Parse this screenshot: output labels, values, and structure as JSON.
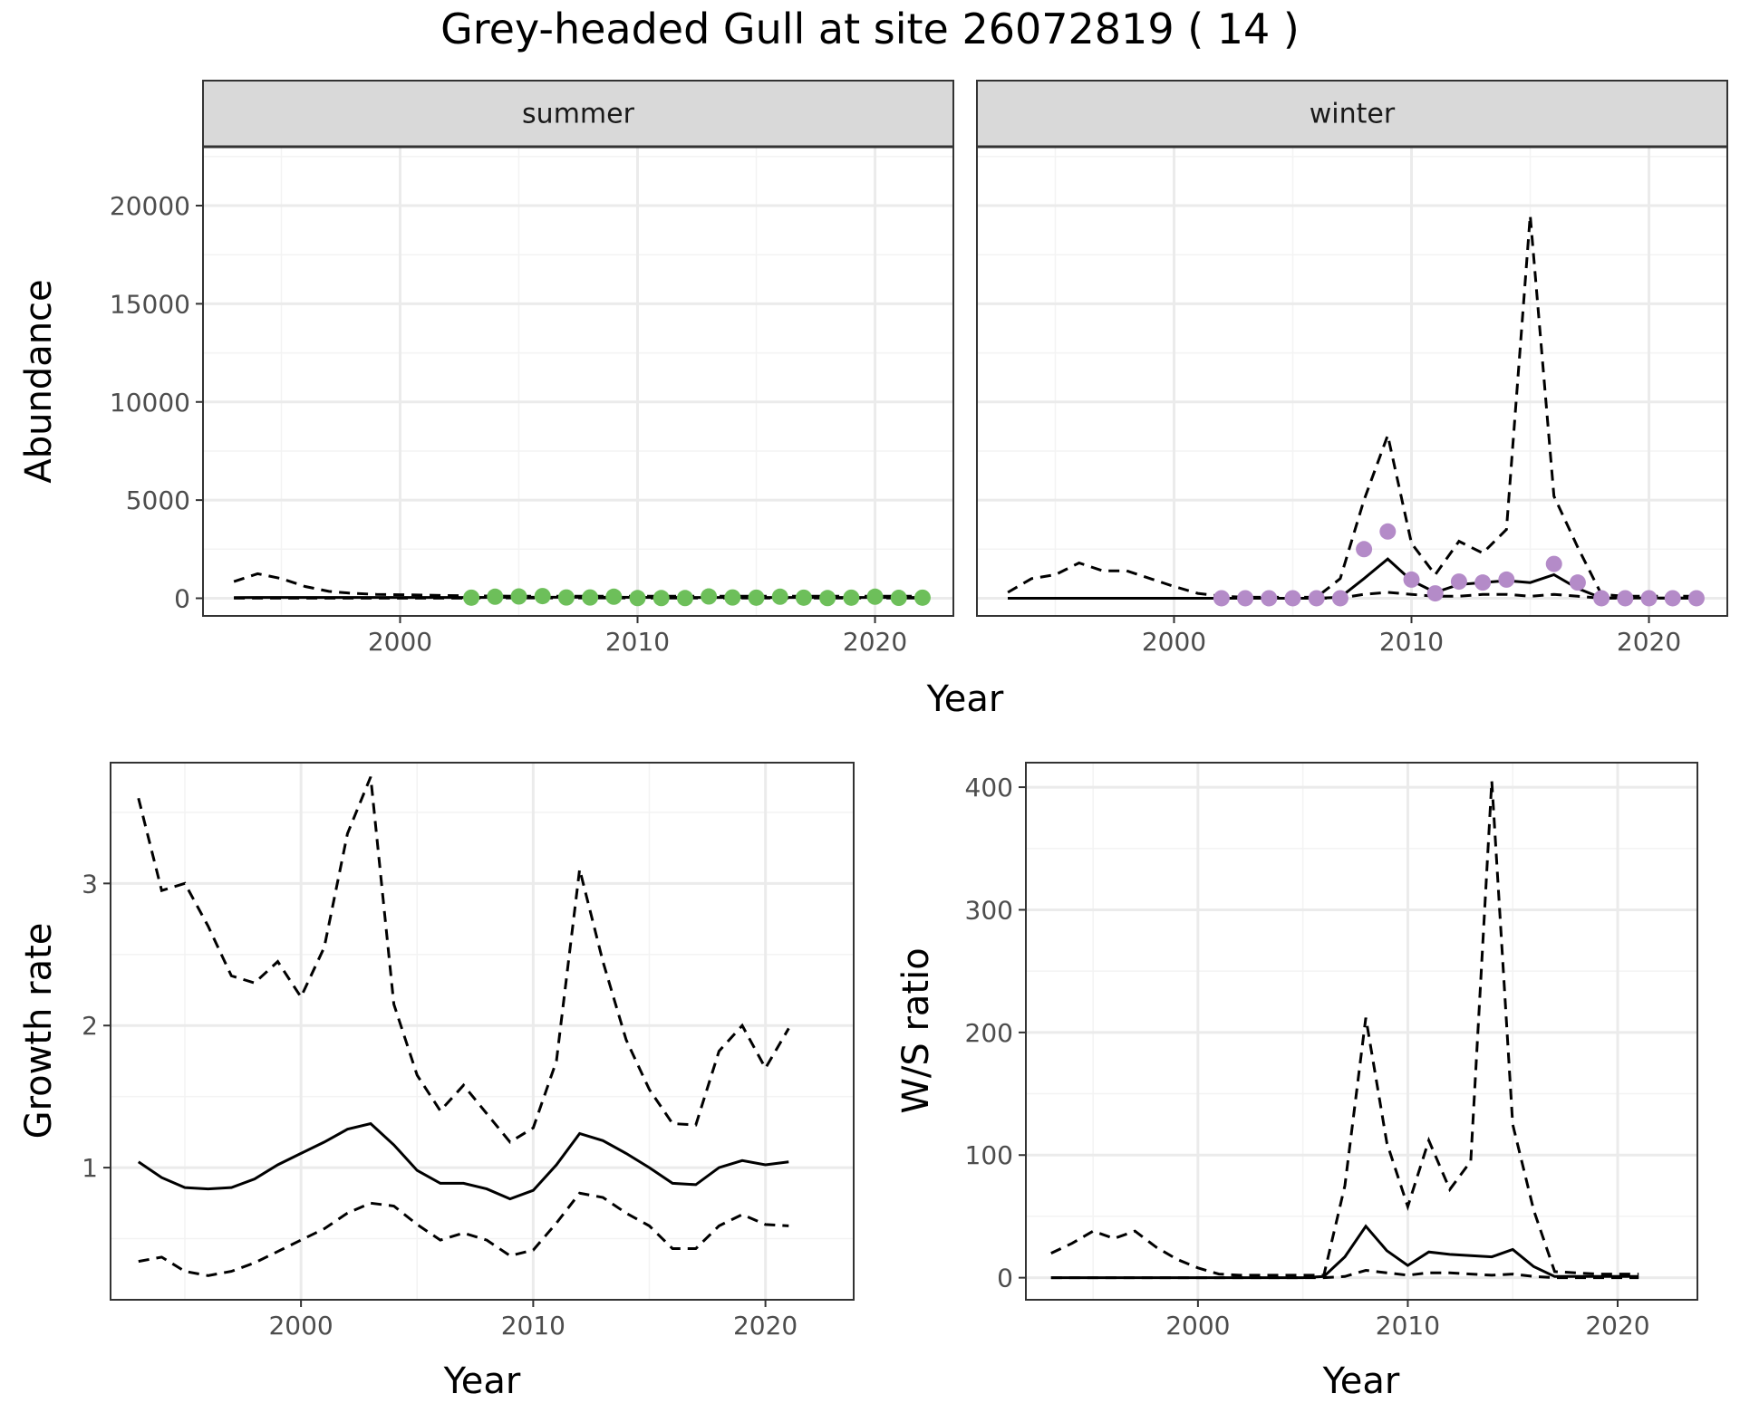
{
  "title": "Grey-headed Gull at site 26072819 ( 14 )",
  "colors": {
    "summer_points": "#6dbf5a",
    "winter_points": "#b48bc8",
    "line": "#000000",
    "grid_major": "#ebebeb",
    "grid_minor": "#f3f3f3",
    "strip_fill": "#d9d9d9",
    "strip_border": "#333333",
    "panel_border": "#333333"
  },
  "chart_data": [
    {
      "type": "line",
      "panel": "summer",
      "strip_label": "summer",
      "xlabel": "Year",
      "ylabel": "Abundance",
      "xlim": [
        1991.7,
        2023.3
      ],
      "ylim": [
        -900,
        23000
      ],
      "xticks": [
        2000,
        2010,
        2020
      ],
      "yticks": [
        0,
        5000,
        10000,
        15000,
        20000
      ],
      "grid": true,
      "x": [
        1993,
        1994,
        1995,
        1996,
        1997,
        1998,
        1999,
        2000,
        2001,
        2002,
        2003,
        2004,
        2005,
        2006,
        2007,
        2008,
        2009,
        2010,
        2011,
        2012,
        2013,
        2014,
        2015,
        2016,
        2017,
        2018,
        2019,
        2020,
        2021,
        2022
      ],
      "mean": [
        30,
        40,
        40,
        40,
        40,
        40,
        40,
        40,
        40,
        40,
        40,
        45,
        50,
        50,
        50,
        50,
        50,
        45,
        40,
        40,
        40,
        40,
        40,
        40,
        40,
        40,
        40,
        40,
        40,
        40
      ],
      "upper": [
        850,
        1250,
        1000,
        600,
        350,
        250,
        200,
        180,
        160,
        140,
        120,
        110,
        100,
        100,
        100,
        100,
        100,
        100,
        100,
        100,
        100,
        100,
        100,
        100,
        100,
        100,
        100,
        100,
        100,
        100
      ],
      "lower": [
        5,
        5,
        5,
        5,
        5,
        5,
        5,
        5,
        5,
        5,
        10,
        15,
        20,
        20,
        20,
        20,
        20,
        15,
        10,
        10,
        10,
        10,
        10,
        10,
        10,
        10,
        10,
        10,
        10,
        10
      ],
      "points": {
        "x": [
          2003,
          2004,
          2005,
          2006,
          2007,
          2008,
          2009,
          2010,
          2011,
          2012,
          2013,
          2014,
          2015,
          2016,
          2017,
          2018,
          2019,
          2020,
          2021,
          2022
        ],
        "y": [
          30,
          80,
          90,
          110,
          40,
          40,
          80,
          10,
          10,
          10,
          90,
          40,
          30,
          80,
          30,
          10,
          30,
          80,
          20,
          30
        ]
      }
    },
    {
      "type": "line",
      "panel": "winter",
      "strip_label": "winter",
      "xlabel": "Year",
      "ylabel": "",
      "xlim": [
        1991.7,
        2023.3
      ],
      "ylim": [
        -900,
        23000
      ],
      "xticks": [
        2000,
        2010,
        2020
      ],
      "yticks": [
        0,
        5000,
        10000,
        15000,
        20000
      ],
      "grid": true,
      "x": [
        1993,
        1994,
        1995,
        1996,
        1997,
        1998,
        1999,
        2000,
        2001,
        2002,
        2003,
        2004,
        2005,
        2006,
        2007,
        2008,
        2009,
        2010,
        2011,
        2012,
        2013,
        2014,
        2015,
        2016,
        2017,
        2018,
        2019,
        2020,
        2021,
        2022
      ],
      "mean": [
        0,
        0,
        0,
        0,
        0,
        0,
        0,
        0,
        0,
        0,
        0,
        0,
        0,
        0,
        50,
        1000,
        2000,
        900,
        300,
        700,
        800,
        900,
        800,
        1200,
        500,
        20,
        10,
        10,
        10,
        10
      ],
      "upper": [
        300,
        1000,
        1200,
        1800,
        1400,
        1400,
        1000,
        600,
        250,
        100,
        50,
        50,
        50,
        50,
        1000,
        5000,
        8300,
        2800,
        1200,
        2900,
        2300,
        3500,
        19500,
        5200,
        2600,
        200,
        100,
        100,
        100,
        100
      ],
      "lower": [
        0,
        0,
        0,
        0,
        0,
        0,
        0,
        0,
        0,
        0,
        0,
        0,
        0,
        0,
        10,
        200,
        300,
        200,
        100,
        100,
        200,
        200,
        100,
        200,
        100,
        5,
        5,
        5,
        5,
        5
      ],
      "points": {
        "x": [
          2002,
          2003,
          2004,
          2005,
          2006,
          2007,
          2008,
          2009,
          2010,
          2011,
          2012,
          2013,
          2014,
          2015,
          2016,
          2017,
          2018,
          2019,
          2020,
          2021,
          2022
        ],
        "y": [
          0,
          0,
          0,
          0,
          0,
          0,
          2500,
          3400,
          950,
          250,
          850,
          800,
          950,
          null,
          1750,
          800,
          0,
          0,
          0,
          0,
          0
        ]
      }
    },
    {
      "type": "line",
      "panel": "growth",
      "xlabel": "Year",
      "ylabel": "Growth rate",
      "xlim": [
        1991.8,
        2023.8
      ],
      "ylim": [
        0.07,
        3.85
      ],
      "xticks": [
        2000,
        2010,
        2020
      ],
      "yticks": [
        1,
        2,
        3
      ],
      "grid": true,
      "x": [
        1993,
        1994,
        1995,
        1996,
        1997,
        1998,
        1999,
        2000,
        2001,
        2002,
        2003,
        2004,
        2005,
        2006,
        2007,
        2008,
        2009,
        2010,
        2011,
        2012,
        2013,
        2014,
        2015,
        2016,
        2017,
        2018,
        2019,
        2020,
        2021
      ],
      "mean": [
        1.04,
        0.93,
        0.86,
        0.85,
        0.86,
        0.92,
        1.02,
        1.1,
        1.18,
        1.27,
        1.31,
        1.16,
        0.98,
        0.89,
        0.89,
        0.85,
        0.78,
        0.84,
        1.02,
        1.24,
        1.19,
        1.1,
        1.0,
        0.89,
        0.88,
        1.0,
        1.05,
        1.02,
        1.04
      ],
      "upper": [
        3.6,
        2.95,
        3.0,
        2.7,
        2.35,
        2.3,
        2.45,
        2.2,
        2.55,
        3.35,
        3.75,
        2.15,
        1.65,
        1.4,
        1.58,
        1.38,
        1.18,
        1.28,
        1.75,
        3.1,
        2.45,
        1.9,
        1.55,
        1.31,
        1.3,
        1.82,
        2.0,
        1.7,
        1.98
      ],
      "lower": [
        0.34,
        0.37,
        0.27,
        0.24,
        0.27,
        0.33,
        0.41,
        0.49,
        0.57,
        0.68,
        0.75,
        0.73,
        0.6,
        0.49,
        0.54,
        0.49,
        0.38,
        0.42,
        0.61,
        0.82,
        0.79,
        0.68,
        0.59,
        0.43,
        0.43,
        0.59,
        0.67,
        0.6,
        0.59
      ]
    },
    {
      "type": "line",
      "panel": "ws_ratio",
      "xlabel": "Year",
      "ylabel": "W/S ratio",
      "xlim": [
        1991.8,
        2023.8
      ],
      "ylim": [
        -18,
        420
      ],
      "xticks": [
        2000,
        2010,
        2020
      ],
      "yticks": [
        0,
        100,
        200,
        300,
        400
      ],
      "grid": true,
      "x": [
        1993,
        1994,
        1995,
        1996,
        1997,
        1998,
        1999,
        2000,
        2001,
        2002,
        2003,
        2004,
        2005,
        2006,
        2007,
        2008,
        2009,
        2010,
        2011,
        2012,
        2013,
        2014,
        2015,
        2016,
        2017,
        2018,
        2019,
        2020,
        2021
      ],
      "mean": [
        0,
        0,
        0,
        0,
        0,
        0,
        0,
        0,
        0,
        0,
        0,
        0,
        0,
        1,
        17,
        42,
        22,
        10,
        21,
        19,
        18,
        17,
        23,
        9,
        1,
        1,
        1,
        1,
        1
      ],
      "upper": [
        20,
        28,
        38,
        32,
        38,
        25,
        15,
        8,
        3,
        2,
        2,
        2,
        2,
        2,
        75,
        212,
        110,
        58,
        112,
        72,
        95,
        405,
        125,
        55,
        5,
        4,
        3,
        3,
        3
      ],
      "lower": [
        0,
        0,
        0,
        0,
        0,
        0,
        0,
        0,
        0,
        0,
        0,
        0,
        0,
        0,
        1,
        6,
        4,
        2,
        4,
        4,
        3,
        2,
        3,
        1,
        0,
        0,
        0,
        0,
        0
      ]
    }
  ]
}
